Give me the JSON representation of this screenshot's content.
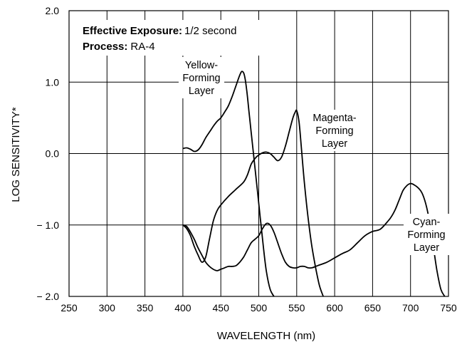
{
  "chart_data": {
    "type": "line",
    "xlabel": "WAVELENGTH (nm)",
    "ylabel": "LOG SENSITIVITY*",
    "xlim": [
      250,
      750
    ],
    "ylim": [
      -2.0,
      2.0
    ],
    "xticks": [
      250,
      300,
      350,
      400,
      450,
      500,
      550,
      600,
      650,
      700,
      750
    ],
    "xtick_labels": [
      "250",
      "300",
      "350",
      "400",
      "450",
      "500",
      "550",
      "600",
      "650",
      "700",
      "750"
    ],
    "yticks": [
      2.0,
      1.0,
      0.0,
      -1.0,
      -2.0
    ],
    "ytick_labels": [
      "2.0",
      "1.0",
      "0.0",
      "− 1.0",
      "− 2.0"
    ],
    "grid": true,
    "annotations": {
      "exposure_label": "Effective Exposure:",
      "exposure_value": "1/2 second",
      "process_label": "Process:",
      "process_value": "RA-4"
    },
    "series": [
      {
        "label_lines": [
          "Yellow-",
          "Forming",
          "Layer"
        ],
        "x": [
          400,
          405,
          410,
          415,
          420,
          425,
          430,
          435,
          440,
          445,
          450,
          455,
          460,
          465,
          470,
          475,
          478,
          481,
          484,
          487,
          490,
          494,
          498,
          502,
          506,
          510,
          515,
          520
        ],
        "y": [
          0.07,
          0.08,
          0.06,
          0.03,
          0.05,
          0.12,
          0.22,
          0.3,
          0.38,
          0.45,
          0.5,
          0.58,
          0.67,
          0.8,
          0.95,
          1.1,
          1.15,
          1.1,
          0.9,
          0.6,
          0.3,
          -0.1,
          -0.5,
          -0.9,
          -1.3,
          -1.65,
          -1.9,
          -2.0
        ]
      },
      {
        "label_lines": [
          "Magenta-",
          "Forming",
          "Layer"
        ],
        "x": [
          400,
          405,
          410,
          415,
          420,
          425,
          430,
          435,
          440,
          445,
          450,
          460,
          470,
          480,
          485,
          490,
          495,
          500,
          505,
          510,
          515,
          520,
          525,
          530,
          535,
          540,
          545,
          548,
          550,
          553,
          556,
          560,
          565,
          570,
          575,
          580,
          585
        ],
        "y": [
          -1.0,
          -1.05,
          -1.15,
          -1.3,
          -1.42,
          -1.52,
          -1.45,
          -1.2,
          -0.95,
          -0.8,
          -0.72,
          -0.6,
          -0.5,
          -0.4,
          -0.3,
          -0.15,
          -0.07,
          -0.02,
          0.01,
          0.02,
          0.0,
          -0.05,
          -0.1,
          -0.05,
          0.1,
          0.3,
          0.5,
          0.58,
          0.6,
          0.45,
          0.1,
          -0.4,
          -0.9,
          -1.3,
          -1.6,
          -1.85,
          -2.0
        ]
      },
      {
        "label_lines": [
          "Cyan-",
          "Forming",
          "Layer"
        ],
        "x": [
          400,
          405,
          410,
          415,
          420,
          425,
          430,
          435,
          440,
          445,
          450,
          455,
          460,
          465,
          470,
          475,
          480,
          485,
          490,
          495,
          500,
          505,
          510,
          515,
          520,
          525,
          530,
          535,
          540,
          545,
          550,
          555,
          560,
          565,
          570,
          575,
          580,
          590,
          600,
          610,
          620,
          630,
          640,
          650,
          660,
          670,
          675,
          680,
          685,
          690,
          695,
          700,
          705,
          710,
          715,
          720,
          725,
          730,
          735,
          740,
          745
        ],
        "y": [
          -1.0,
          -1.02,
          -1.1,
          -1.2,
          -1.32,
          -1.42,
          -1.52,
          -1.58,
          -1.62,
          -1.64,
          -1.62,
          -1.6,
          -1.58,
          -1.58,
          -1.57,
          -1.52,
          -1.45,
          -1.35,
          -1.25,
          -1.2,
          -1.15,
          -1.05,
          -0.98,
          -1.0,
          -1.1,
          -1.25,
          -1.4,
          -1.52,
          -1.58,
          -1.6,
          -1.6,
          -1.58,
          -1.58,
          -1.6,
          -1.6,
          -1.58,
          -1.56,
          -1.52,
          -1.46,
          -1.4,
          -1.35,
          -1.25,
          -1.15,
          -1.09,
          -1.06,
          -0.95,
          -0.88,
          -0.78,
          -0.65,
          -0.52,
          -0.45,
          -0.42,
          -0.44,
          -0.48,
          -0.55,
          -0.7,
          -0.95,
          -1.3,
          -1.65,
          -1.9,
          -2.0
        ]
      }
    ]
  }
}
